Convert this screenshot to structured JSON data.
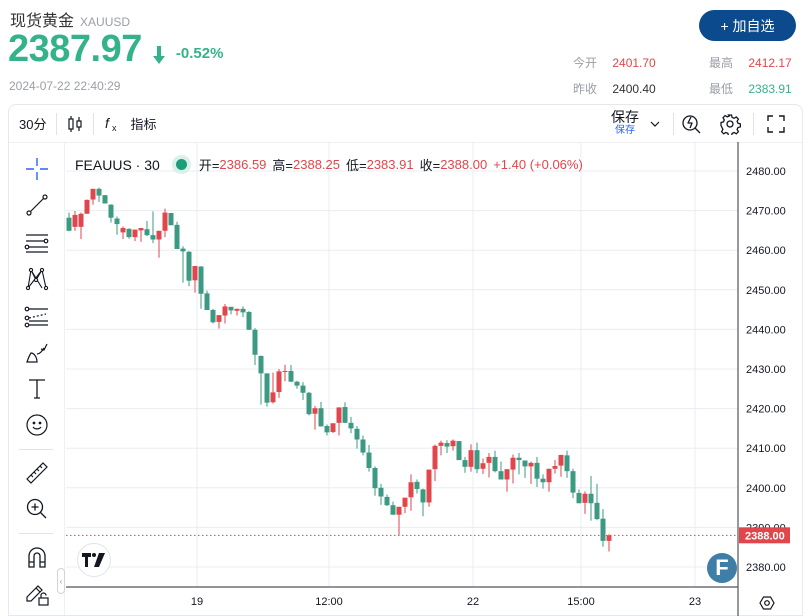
{
  "header": {
    "title": "现货黄金",
    "symbol": "XAUUSD",
    "price": "2387.97",
    "change_pct": "-0.52%",
    "direction": "down",
    "timestamp": "2024-07-22 22:40:29",
    "watch_button": "+ 加自选",
    "stats": {
      "open_label": "今开",
      "open": "2401.70",
      "prev_close_label": "昨收",
      "prev_close": "2400.40",
      "high_label": "最高",
      "high": "2412.17",
      "low_label": "最低",
      "low": "2383.91"
    }
  },
  "toolbar": {
    "interval": "30分",
    "indicators_label": "指标",
    "save_label": "保存",
    "save_sub_label": "保存",
    "icons": [
      "candle-style-icon",
      "fx-indicators-icon",
      "chevron-down-icon",
      "alert-search-icon",
      "gear-icon",
      "fullscreen-icon"
    ]
  },
  "sidebar": {
    "tools": [
      "crosshair-icon",
      "trend-line-icon",
      "fib-retracement-icon",
      "pattern-icon",
      "pitchfork-icon",
      "brush-icon",
      "text-icon",
      "emoji-icon",
      "ruler-icon",
      "zoom-in-icon",
      "magnet-icon",
      "lock-drawing-icon"
    ]
  },
  "legend": {
    "symbol": "FEAUUS · 30",
    "open_label": "开=",
    "open": "2386.59",
    "high_label": "高=",
    "high": "2388.25",
    "low_label": "低=",
    "low": "2383.91",
    "close_label": "收=",
    "close": "2388.00",
    "change": "+1.40 (+0.06%)"
  },
  "colors": {
    "up": "#e0474c",
    "down": "#3d9a82",
    "price_green": "#34b38a",
    "accent_blue": "#0b4a8d",
    "grid": "#e8edf3"
  },
  "chart_data": {
    "type": "candlestick",
    "title": "FEAUUS · 30",
    "xlabel": "",
    "ylabel": "",
    "ylim": [
      2375,
      2485
    ],
    "y_ticks": [
      "2480.00",
      "2470.00",
      "2460.00",
      "2450.00",
      "2440.00",
      "2430.00",
      "2420.00",
      "2410.00",
      "2400.00",
      "2390.00",
      "2380.00"
    ],
    "x_ticks": [
      {
        "label": "19",
        "index": 22
      },
      {
        "label": "12:00",
        "index": 44
      },
      {
        "label": "22",
        "index": 68
      },
      {
        "label": "15:00",
        "index": 86
      },
      {
        "label": "23",
        "index": 105
      }
    ],
    "last_price": "2388.00",
    "grid": true,
    "candles": [
      [
        2468.2,
        2469.5,
        2464.8,
        2464.9
      ],
      [
        2465.9,
        2469.9,
        2464.9,
        2468.9
      ],
      [
        2465.9,
        2469.5,
        2462.8,
        2469.2
      ],
      [
        2469.2,
        2472.8,
        2469.2,
        2472.7
      ],
      [
        2472.8,
        2475.3,
        2471.5,
        2475.5
      ],
      [
        2475.5,
        2475.8,
        2472.2,
        2473.8
      ],
      [
        2473.9,
        2473.9,
        2473.0,
        2471.8
      ],
      [
        2471.5,
        2471.6,
        2467.0,
        2468.2
      ],
      [
        2468.0,
        2468.5,
        2463.9,
        2466.6
      ],
      [
        2464.5,
        2466.0,
        2462.8,
        2465.6
      ],
      [
        2465.4,
        2465.5,
        2462.9,
        2463.3
      ],
      [
        2463.3,
        2463.4,
        2462.3,
        2465.2
      ],
      [
        2465.0,
        2465.1,
        2462.1,
        2465.6
      ],
      [
        2465.3,
        2467.4,
        2463.6,
        2463.8
      ],
      [
        2463.8,
        2469.8,
        2461.8,
        2462.7
      ],
      [
        2462.7,
        2464.5,
        2458.1,
        2464.9
      ],
      [
        2464.9,
        2470.5,
        2463.3,
        2469.5
      ],
      [
        2469.4,
        2468.7,
        2466.8,
        2466.3
      ],
      [
        2466.4,
        2467.2,
        2461.5,
        2460.3
      ],
      [
        2460.4,
        2461.0,
        2451.8,
        2459.7
      ],
      [
        2459.6,
        2459.8,
        2450.9,
        2452.3
      ],
      [
        2452.4,
        2452.6,
        2449.3,
        2456.0
      ],
      [
        2455.9,
        2455.6,
        2445.2,
        2449.0
      ],
      [
        2449.1,
        2449.8,
        2446.4,
        2444.9
      ],
      [
        2444.9,
        2445.2,
        2441.5,
        2441.8
      ],
      [
        2441.9,
        2442.6,
        2440.2,
        2443.6
      ],
      [
        2443.5,
        2446.4,
        2441.5,
        2445.8
      ],
      [
        2445.7,
        2445.6,
        2443.8,
        2444.8
      ],
      [
        2444.7,
        2445.0,
        2443.5,
        2445.2
      ],
      [
        2445.2,
        2445.8,
        2443.1,
        2444.3
      ],
      [
        2444.4,
        2444.6,
        2440.4,
        2439.9
      ],
      [
        2439.9,
        2440.3,
        2431.0,
        2433.6
      ],
      [
        2433.3,
        2433.4,
        2421.0,
        2428.9
      ],
      [
        2428.9,
        2426.1,
        2420.5,
        2421.5
      ],
      [
        2421.6,
        2429.1,
        2421.3,
        2424.1
      ],
      [
        2424.2,
        2430.0,
        2422.7,
        2429.4
      ],
      [
        2429.3,
        2431.1,
        2426.9,
        2429.5
      ],
      [
        2429.5,
        2431.0,
        2426.7,
        2426.8
      ],
      [
        2426.8,
        2427.0,
        2425.0,
        2425.8
      ],
      [
        2425.8,
        2426.7,
        2422.2,
        2424.0
      ],
      [
        2424.0,
        2424.2,
        2418.3,
        2418.6
      ],
      [
        2418.7,
        2420.7,
        2414.7,
        2420.1
      ],
      [
        2420.1,
        2421.7,
        2418.4,
        2415.5
      ],
      [
        2415.6,
        2416.0,
        2413.2,
        2414.0
      ],
      [
        2414.1,
        2415.8,
        2413.8,
        2416.3
      ],
      [
        2416.4,
        2419.9,
        2413.2,
        2420.3
      ],
      [
        2420.4,
        2421.6,
        2417.0,
        2416.4
      ],
      [
        2416.4,
        2417.9,
        2413.8,
        2415.0
      ],
      [
        2414.9,
        2415.6,
        2409.9,
        2412.2
      ],
      [
        2412.2,
        2413.2,
        2408.2,
        2408.9
      ],
      [
        2408.9,
        2410.8,
        2404.1,
        2405.0
      ],
      [
        2405.0,
        2405.4,
        2398.0,
        2399.9
      ],
      [
        2400.0,
        2401.0,
        2395.7,
        2397.8
      ],
      [
        2397.7,
        2398.3,
        2395.4,
        2395.6
      ],
      [
        2395.6,
        2396.5,
        2393.5,
        2393.2
      ],
      [
        2393.2,
        2393.6,
        2388.0,
        2395.2
      ],
      [
        2395.2,
        2397.2,
        2393.6,
        2397.5
      ],
      [
        2397.6,
        2403.4,
        2394.2,
        2401.4
      ],
      [
        2401.5,
        2402.1,
        2398.6,
        2399.7
      ],
      [
        2399.6,
        2399.8,
        2392.8,
        2396.3
      ],
      [
        2396.3,
        2403.4,
        2395.2,
        2404.6
      ],
      [
        2404.7,
        2410.9,
        2401.7,
        2410.6
      ],
      [
        2410.6,
        2411.9,
        2408.2,
        2411.4
      ],
      [
        2411.3,
        2412.0,
        2408.8,
        2410.4
      ],
      [
        2410.5,
        2412.2,
        2409.4,
        2411.9
      ],
      [
        2411.8,
        2411.8,
        2408.5,
        2407.0
      ],
      [
        2407.0,
        2407.8,
        2403.8,
        2405.3
      ],
      [
        2405.3,
        2411.0,
        2404.1,
        2409.5
      ],
      [
        2409.5,
        2411.4,
        2403.7,
        2404.7
      ],
      [
        2404.8,
        2407.4,
        2403.5,
        2406.2
      ],
      [
        2406.3,
        2408.8,
        2402.6,
        2407.8
      ],
      [
        2407.8,
        2409.4,
        2403.9,
        2404.2
      ],
      [
        2404.2,
        2406.6,
        2403.4,
        2402.1
      ],
      [
        2402.1,
        2404.2,
        2399.0,
        2404.7
      ],
      [
        2404.6,
        2408.4,
        2401.1,
        2407.6
      ],
      [
        2407.6,
        2408.8,
        2403.4,
        2407.0
      ],
      [
        2406.9,
        2406.8,
        2402.5,
        2405.4
      ],
      [
        2405.4,
        2406.6,
        2401.0,
        2406.3
      ],
      [
        2406.3,
        2407.8,
        2400.2,
        2402.3
      ],
      [
        2402.3,
        2403.4,
        2399.8,
        2401.4
      ],
      [
        2401.4,
        2403.9,
        2399.0,
        2404.8
      ],
      [
        2404.8,
        2407.0,
        2403.6,
        2405.5
      ],
      [
        2405.6,
        2408.1,
        2402.8,
        2408.3
      ],
      [
        2408.2,
        2409.4,
        2402.5,
        2404.2
      ],
      [
        2404.2,
        2404.8,
        2397.4,
        2398.8
      ],
      [
        2398.7,
        2399.6,
        2396.6,
        2396.1
      ],
      [
        2396.2,
        2399.1,
        2393.4,
        2398.5
      ],
      [
        2398.5,
        2403.0,
        2391.7,
        2396.1
      ],
      [
        2396.2,
        2401.0,
        2391.8,
        2392.1
      ],
      [
        2392.2,
        2394.6,
        2385.1,
        2386.6
      ],
      [
        2386.6,
        2388.3,
        2383.9,
        2388.0
      ]
    ]
  }
}
